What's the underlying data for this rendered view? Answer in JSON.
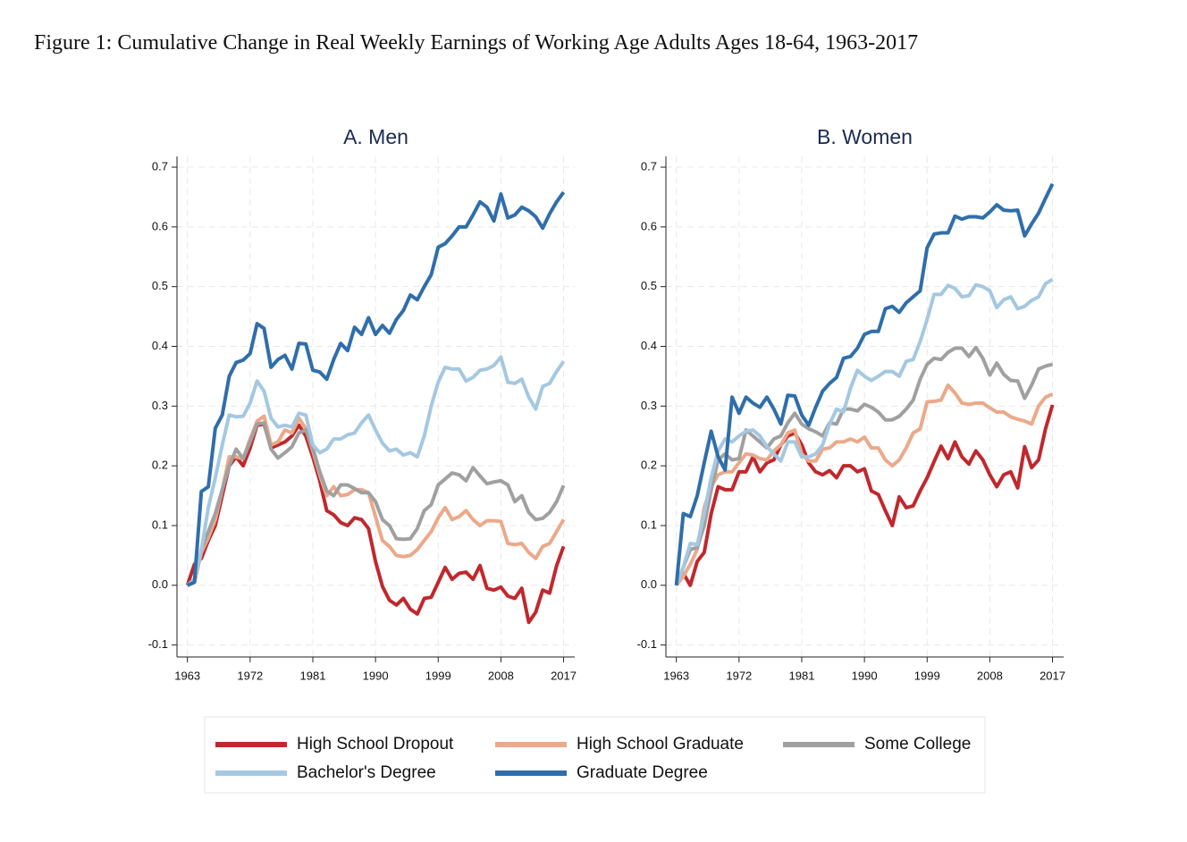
{
  "title": "Figure 1: Cumulative Change in Real Weekly Earnings of Working Age Adults Ages 18-64, 1963-2017",
  "chart_data": [
    {
      "type": "line",
      "title": "A. Men",
      "x": [
        1963,
        1964,
        1965,
        1966,
        1967,
        1968,
        1969,
        1970,
        1971,
        1972,
        1973,
        1974,
        1975,
        1976,
        1977,
        1978,
        1979,
        1980,
        1981,
        1982,
        1983,
        1984,
        1985,
        1986,
        1987,
        1988,
        1989,
        1990,
        1991,
        1992,
        1993,
        1994,
        1995,
        1996,
        1997,
        1998,
        1999,
        2000,
        2001,
        2002,
        2003,
        2004,
        2005,
        2006,
        2007,
        2008,
        2009,
        2010,
        2011,
        2012,
        2013,
        2014,
        2015,
        2016,
        2017
      ],
      "xlim": [
        1961.5,
        2018.6
      ],
      "xticks": [
        1963,
        1972,
        1981,
        1990,
        1999,
        2008,
        2017
      ],
      "ylim": [
        -0.12,
        0.718
      ],
      "yticks": [
        -0.1,
        {
          "value": 0,
          "label": "0.0"
        },
        0.1,
        0.2,
        0.3,
        0.4,
        0.5,
        0.6,
        0.7
      ],
      "grid": true,
      "series": [
        {
          "name": "High School Dropout",
          "color": "#c0282d",
          "values": [
            0,
            0.035,
            0.045,
            0.075,
            0.1,
            0.15,
            0.2,
            0.215,
            0.2,
            0.23,
            0.268,
            0.27,
            0.23,
            0.235,
            0.24,
            0.25,
            0.268,
            0.25,
            0.215,
            0.175,
            0.125,
            0.118,
            0.105,
            0.1,
            0.113,
            0.11,
            0.095,
            0.04,
            -0.002,
            -0.025,
            -0.033,
            -0.022,
            -0.04,
            -0.048,
            -0.022,
            -0.02,
            0.005,
            0.03,
            0.01,
            0.02,
            0.022,
            0.01,
            0.033,
            -0.005,
            -0.008,
            -0.003,
            -0.018,
            -0.022,
            -0.005,
            -0.062,
            -0.045,
            -0.008,
            -0.013,
            0.033,
            0.065
          ]
        },
        {
          "name": "High School Graduate",
          "color": "#eba98a",
          "values": [
            0,
            0.005,
            0.055,
            0.08,
            0.11,
            0.16,
            0.215,
            0.215,
            0.212,
            0.245,
            0.275,
            0.283,
            0.235,
            0.24,
            0.26,
            0.255,
            0.28,
            0.262,
            0.225,
            0.185,
            0.15,
            0.165,
            0.15,
            0.152,
            0.16,
            0.16,
            0.155,
            0.115,
            0.075,
            0.065,
            0.05,
            0.048,
            0.05,
            0.06,
            0.075,
            0.09,
            0.113,
            0.13,
            0.11,
            0.115,
            0.125,
            0.11,
            0.1,
            0.108,
            0.108,
            0.107,
            0.07,
            0.068,
            0.07,
            0.055,
            0.045,
            0.065,
            0.07,
            0.09,
            0.11
          ]
        },
        {
          "name": "Some College",
          "color": "#a0a0a0",
          "values": [
            0,
            0.005,
            0.06,
            0.09,
            0.12,
            0.16,
            0.2,
            0.228,
            0.212,
            0.24,
            0.27,
            0.272,
            0.228,
            0.213,
            0.222,
            0.232,
            0.255,
            0.26,
            0.23,
            0.19,
            0.158,
            0.15,
            0.168,
            0.168,
            0.162,
            0.155,
            0.155,
            0.14,
            0.11,
            0.1,
            0.078,
            0.077,
            0.078,
            0.095,
            0.125,
            0.135,
            0.168,
            0.178,
            0.188,
            0.185,
            0.175,
            0.197,
            0.183,
            0.17,
            0.173,
            0.175,
            0.168,
            0.14,
            0.15,
            0.122,
            0.11,
            0.112,
            0.122,
            0.14,
            0.167
          ]
        },
        {
          "name": "Bachelor's Degree",
          "color": "#a5c8e1",
          "values": [
            0,
            0.01,
            0.06,
            0.13,
            0.18,
            0.235,
            0.285,
            0.282,
            0.283,
            0.305,
            0.342,
            0.325,
            0.28,
            0.265,
            0.268,
            0.265,
            0.288,
            0.285,
            0.235,
            0.222,
            0.228,
            0.245,
            0.245,
            0.252,
            0.255,
            0.272,
            0.285,
            0.26,
            0.238,
            0.225,
            0.228,
            0.218,
            0.222,
            0.215,
            0.25,
            0.3,
            0.34,
            0.365,
            0.362,
            0.362,
            0.342,
            0.348,
            0.36,
            0.362,
            0.368,
            0.382,
            0.34,
            0.338,
            0.345,
            0.315,
            0.295,
            0.333,
            0.338,
            0.358,
            0.375
          ]
        },
        {
          "name": "Graduate Degree",
          "color": "#2f6eaa",
          "values": [
            0,
            0.005,
            0.157,
            0.165,
            0.263,
            0.285,
            0.35,
            0.373,
            0.377,
            0.388,
            0.438,
            0.43,
            0.365,
            0.378,
            0.385,
            0.362,
            0.405,
            0.404,
            0.36,
            0.357,
            0.345,
            0.378,
            0.405,
            0.393,
            0.432,
            0.42,
            0.448,
            0.42,
            0.435,
            0.422,
            0.445,
            0.46,
            0.486,
            0.478,
            0.5,
            0.52,
            0.566,
            0.572,
            0.585,
            0.6,
            0.6,
            0.62,
            0.642,
            0.633,
            0.61,
            0.655,
            0.615,
            0.62,
            0.633,
            0.627,
            0.617,
            0.598,
            0.622,
            0.642,
            0.658
          ]
        }
      ]
    },
    {
      "type": "line",
      "title": "B. Women",
      "x": [
        1963,
        1964,
        1965,
        1966,
        1967,
        1968,
        1969,
        1970,
        1971,
        1972,
        1973,
        1974,
        1975,
        1976,
        1977,
        1978,
        1979,
        1980,
        1981,
        1982,
        1983,
        1984,
        1985,
        1986,
        1987,
        1988,
        1989,
        1990,
        1991,
        1992,
        1993,
        1994,
        1995,
        1996,
        1997,
        1998,
        1999,
        2000,
        2001,
        2002,
        2003,
        2004,
        2005,
        2006,
        2007,
        2008,
        2009,
        2010,
        2011,
        2012,
        2013,
        2014,
        2015,
        2016,
        2017
      ],
      "xlim": [
        1961.5,
        2018.6
      ],
      "xticks": [
        1963,
        1972,
        1981,
        1990,
        1999,
        2008,
        2017
      ],
      "ylim": [
        -0.12,
        0.718
      ],
      "yticks": [
        -0.1,
        {
          "value": 0,
          "label": "0.0"
        },
        0.1,
        0.2,
        0.3,
        0.4,
        0.5,
        0.6,
        0.7
      ],
      "grid": true,
      "series": [
        {
          "name": "High School Dropout",
          "color": "#c0282d",
          "values": [
            0,
            0.02,
            0,
            0.04,
            0.055,
            0.12,
            0.165,
            0.16,
            0.16,
            0.19,
            0.19,
            0.215,
            0.19,
            0.205,
            0.21,
            0.235,
            0.25,
            0.255,
            0.235,
            0.205,
            0.19,
            0.185,
            0.192,
            0.18,
            0.2,
            0.2,
            0.19,
            0.195,
            0.158,
            0.152,
            0.125,
            0.1,
            0.148,
            0.13,
            0.133,
            0.158,
            0.18,
            0.207,
            0.233,
            0.212,
            0.24,
            0.215,
            0.203,
            0.225,
            0.21,
            0.185,
            0.165,
            0.185,
            0.19,
            0.163,
            0.232,
            0.197,
            0.21,
            0.262,
            0.302
          ]
        },
        {
          "name": "High School Graduate",
          "color": "#eba98a",
          "values": [
            0,
            0.015,
            0.035,
            0.06,
            0.13,
            0.165,
            0.185,
            0.19,
            0.19,
            0.205,
            0.22,
            0.218,
            0.212,
            0.21,
            0.225,
            0.235,
            0.255,
            0.26,
            0.22,
            0.208,
            0.208,
            0.228,
            0.23,
            0.24,
            0.24,
            0.245,
            0.24,
            0.248,
            0.23,
            0.23,
            0.21,
            0.2,
            0.21,
            0.23,
            0.255,
            0.262,
            0.307,
            0.308,
            0.31,
            0.335,
            0.322,
            0.305,
            0.303,
            0.305,
            0.305,
            0.297,
            0.29,
            0.29,
            0.282,
            0.278,
            0.275,
            0.27,
            0.3,
            0.315,
            0.32
          ]
        },
        {
          "name": "Some College",
          "color": "#a0a0a0",
          "values": [
            0,
            0.03,
            0.06,
            0.063,
            0.1,
            0.16,
            0.21,
            0.22,
            0.21,
            0.212,
            0.26,
            0.25,
            0.24,
            0.23,
            0.245,
            0.25,
            0.272,
            0.288,
            0.27,
            0.262,
            0.257,
            0.25,
            0.272,
            0.27,
            0.295,
            0.295,
            0.292,
            0.303,
            0.298,
            0.29,
            0.277,
            0.277,
            0.283,
            0.295,
            0.31,
            0.345,
            0.37,
            0.38,
            0.378,
            0.39,
            0.397,
            0.397,
            0.383,
            0.398,
            0.38,
            0.352,
            0.372,
            0.353,
            0.343,
            0.342,
            0.313,
            0.335,
            0.362,
            0.367,
            0.37
          ]
        },
        {
          "name": "Bachelor's Degree",
          "color": "#a5c8e1",
          "values": [
            0,
            0.03,
            0.07,
            0.068,
            0.12,
            0.18,
            0.225,
            0.245,
            0.24,
            0.25,
            0.258,
            0.26,
            0.25,
            0.232,
            0.22,
            0.208,
            0.24,
            0.24,
            0.215,
            0.215,
            0.22,
            0.235,
            0.27,
            0.295,
            0.29,
            0.33,
            0.36,
            0.35,
            0.343,
            0.35,
            0.358,
            0.358,
            0.35,
            0.375,
            0.378,
            0.408,
            0.445,
            0.487,
            0.487,
            0.502,
            0.497,
            0.483,
            0.485,
            0.503,
            0.5,
            0.493,
            0.465,
            0.478,
            0.483,
            0.463,
            0.467,
            0.477,
            0.483,
            0.505,
            0.512
          ]
        },
        {
          "name": "Graduate Degree",
          "color": "#2f6eaa",
          "values": [
            0,
            0.12,
            0.115,
            0.15,
            0.205,
            0.258,
            0.215,
            0.193,
            0.315,
            0.288,
            0.315,
            0.305,
            0.298,
            0.315,
            0.295,
            0.27,
            0.318,
            0.317,
            0.285,
            0.268,
            0.298,
            0.325,
            0.338,
            0.348,
            0.38,
            0.383,
            0.397,
            0.42,
            0.425,
            0.425,
            0.463,
            0.467,
            0.457,
            0.473,
            0.483,
            0.493,
            0.565,
            0.588,
            0.59,
            0.59,
            0.618,
            0.613,
            0.617,
            0.617,
            0.615,
            0.625,
            0.637,
            0.628,
            0.627,
            0.628,
            0.585,
            0.605,
            0.623,
            0.648,
            0.672
          ]
        }
      ]
    }
  ]
}
